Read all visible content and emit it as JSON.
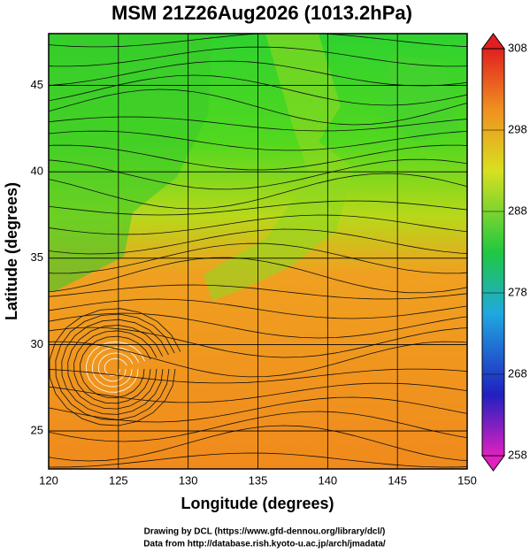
{
  "title": "MSM 21Z26Aug2026 (1013.2hPa)",
  "x_axis": {
    "label": "Longitude (degrees)",
    "lim": [
      120,
      150
    ],
    "ticks": [
      120,
      125,
      130,
      135,
      140,
      145,
      150
    ]
  },
  "y_axis": {
    "label": "Latitude  (degrees)",
    "lim": [
      22.8,
      48
    ],
    "ticks": [
      25,
      30,
      35,
      40,
      45
    ]
  },
  "colorbar": {
    "lim": [
      258,
      308
    ],
    "ticks": [
      258,
      268,
      278,
      288,
      298,
      308
    ]
  },
  "credits": [
    "Drawing by DCL (https://www.gfd-dennou.org/library/dcl/)",
    "Data from http://database.rish.kyoto-u.ac.jp/arch/jmadata/"
  ]
}
